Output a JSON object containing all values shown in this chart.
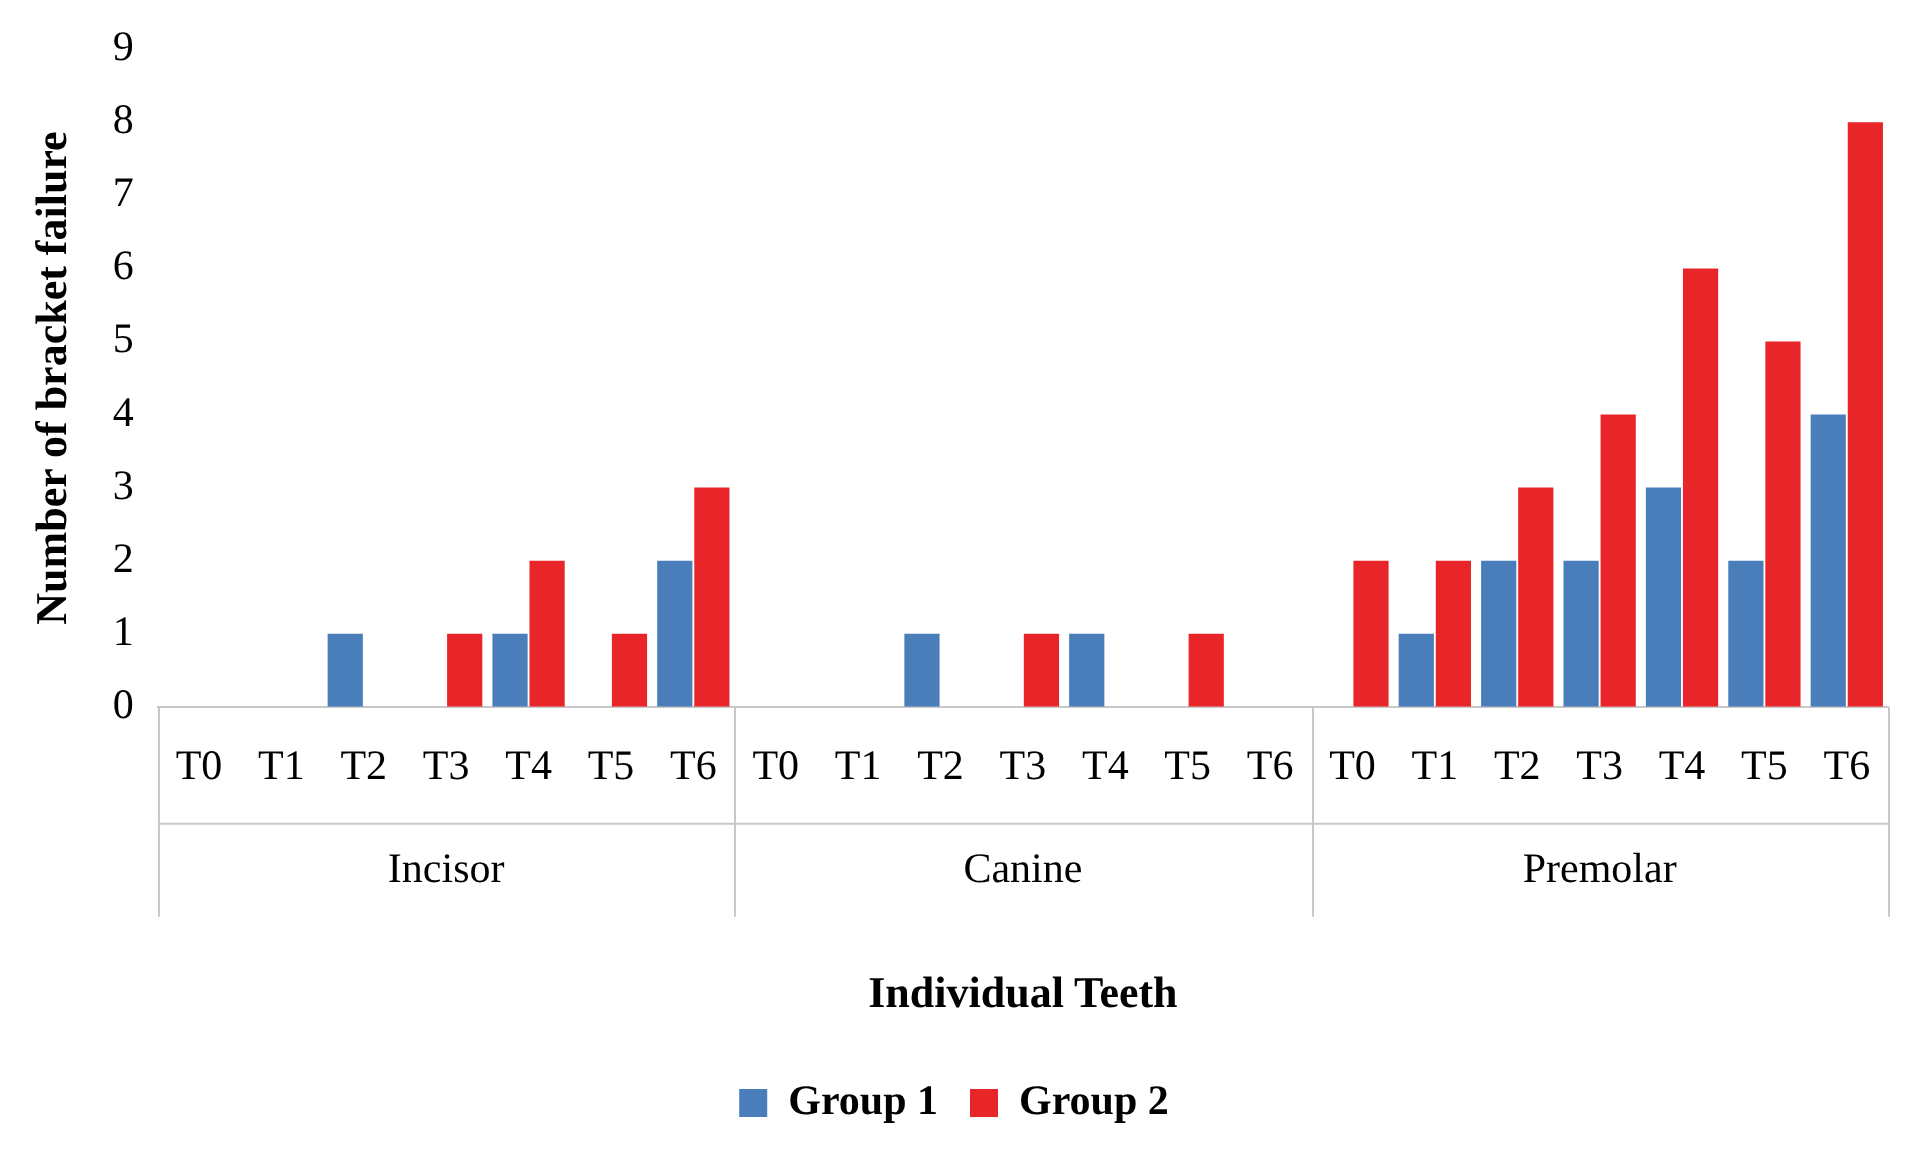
{
  "chart_data": {
    "type": "bar",
    "xlabel": "Individual Teeth",
    "ylabel": "Number of bracket failure",
    "categories": [
      "T0",
      "T1",
      "T2",
      "T3",
      "T4",
      "T5",
      "T6",
      "T0",
      "T1",
      "T2",
      "T3",
      "T4",
      "T5",
      "T6",
      "T0",
      "T1",
      "T2",
      "T3",
      "T4",
      "T5",
      "T6"
    ],
    "series": [
      {
        "name": "Group 1",
        "color": "#4a7ebb",
        "values": [
          0,
          0,
          1,
          0,
          1,
          0,
          2,
          0,
          0,
          1,
          0,
          1,
          0,
          0,
          0,
          1,
          2,
          2,
          3,
          2,
          4
        ]
      },
      {
        "name": "Group 2",
        "color": "#e8262a",
        "values": [
          0,
          0,
          0,
          1,
          2,
          1,
          3,
          0,
          0,
          0,
          1,
          0,
          1,
          0,
          2,
          2,
          3,
          4,
          6,
          5,
          8
        ]
      }
    ],
    "annotations": [
      "Incisor",
      "Canine",
      "Premolar"
    ],
    "ylim": [
      0,
      9
    ],
    "yticks": [
      0,
      1,
      2,
      3,
      4,
      5,
      6,
      7,
      8,
      9
    ],
    "grid": false,
    "legend": "bottom"
  }
}
